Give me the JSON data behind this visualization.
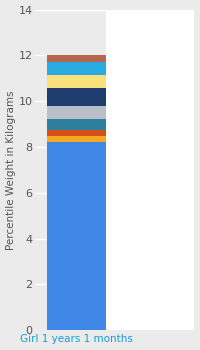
{
  "category": "Girl 1 years 1 months",
  "ylabel": "Percentile Weight in Kilograms",
  "ylim": [
    0,
    14
  ],
  "yticks": [
    0,
    2,
    4,
    6,
    8,
    10,
    12,
    14
  ],
  "segments": [
    {
      "value": 8.2,
      "color": "#4088e8"
    },
    {
      "value": 0.28,
      "color": "#f5a820"
    },
    {
      "value": 0.28,
      "color": "#d44e1a"
    },
    {
      "value": 0.48,
      "color": "#2e7e9e"
    },
    {
      "value": 0.55,
      "color": "#b8bfc7"
    },
    {
      "value": 0.8,
      "color": "#1e3d6e"
    },
    {
      "value": 0.55,
      "color": "#f9e07a"
    },
    {
      "value": 0.55,
      "color": "#29abe2"
    },
    {
      "value": 0.31,
      "color": "#b5664e"
    }
  ],
  "background_color": "#ebebeb",
  "plot_bg_left": "#ebebeb",
  "plot_bg_right": "#ffffff",
  "xlabel_color": "#1a9cd8",
  "label_fontsize": 7.5,
  "tick_fontsize": 8,
  "grid_color": "#ffffff"
}
